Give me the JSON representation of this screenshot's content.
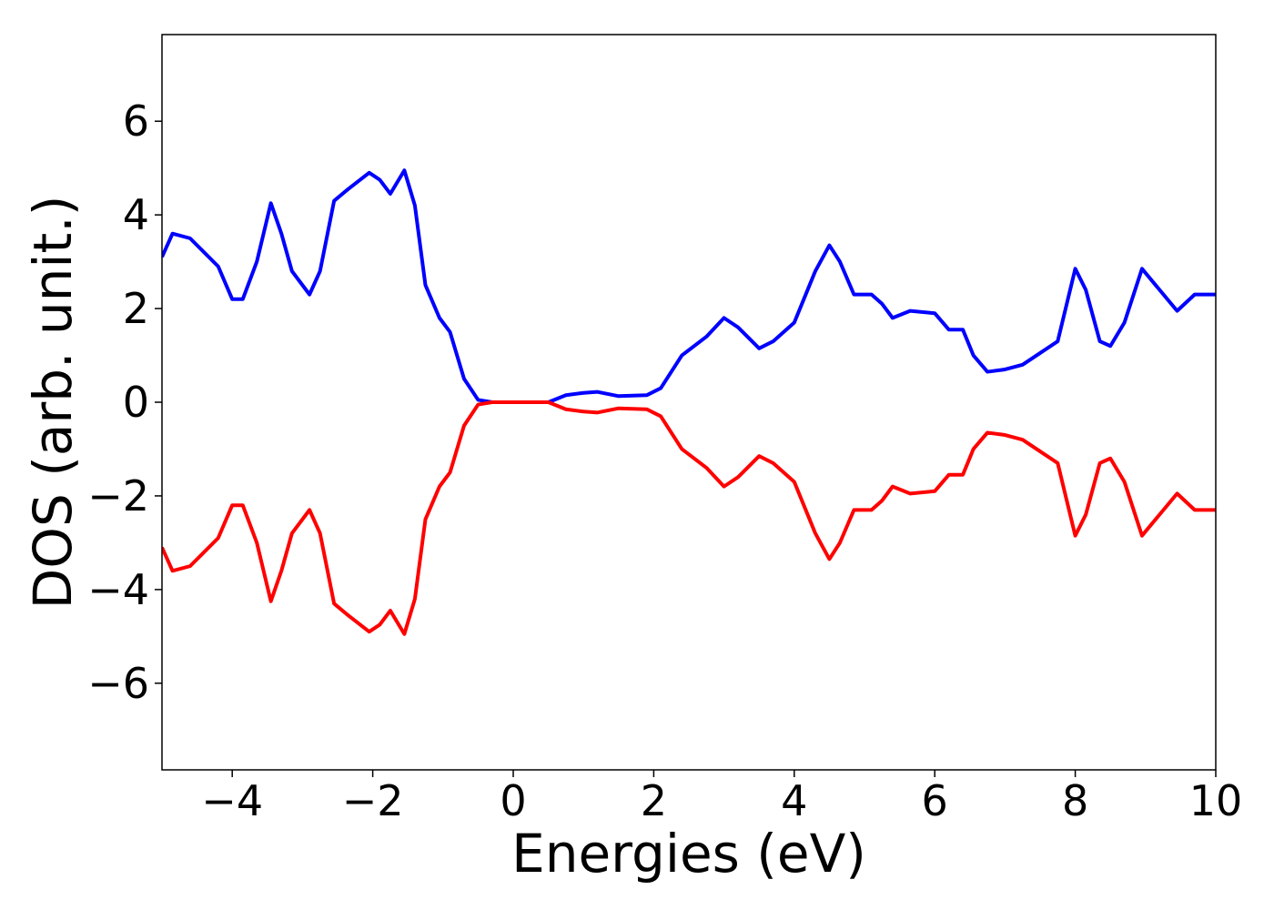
{
  "chart_data": {
    "type": "line",
    "xlabel": "Energies (eV)",
    "ylabel": "DOS (arb. unit.)",
    "x": [
      -5.0,
      -4.85,
      -4.6,
      -4.4,
      -4.2,
      -4.0,
      -3.85,
      -3.65,
      -3.45,
      -3.3,
      -3.15,
      -2.9,
      -2.75,
      -2.55,
      -2.35,
      -2.05,
      -1.9,
      -1.75,
      -1.55,
      -1.4,
      -1.25,
      -1.05,
      -0.9,
      -0.7,
      -0.5,
      -0.3,
      0.5,
      0.75,
      1.0,
      1.2,
      1.5,
      1.9,
      2.1,
      2.4,
      2.75,
      3.0,
      3.2,
      3.5,
      3.7,
      4.0,
      4.3,
      4.5,
      4.65,
      4.85,
      5.1,
      5.25,
      5.4,
      5.65,
      6.0,
      6.2,
      6.4,
      6.55,
      6.75,
      7.0,
      7.25,
      7.5,
      7.75,
      8.0,
      8.15,
      8.35,
      8.5,
      8.7,
      8.95,
      9.2,
      9.45,
      9.7,
      10.0
    ],
    "series": [
      {
        "color": "#0000ff",
        "values": [
          3.1,
          3.6,
          3.5,
          3.2,
          2.9,
          2.2,
          2.2,
          3.0,
          4.25,
          3.6,
          2.8,
          2.3,
          2.8,
          4.3,
          4.55,
          4.9,
          4.75,
          4.45,
          4.95,
          4.2,
          2.5,
          1.8,
          1.5,
          0.5,
          0.05,
          0.0,
          0.0,
          0.15,
          0.2,
          0.22,
          0.13,
          0.15,
          0.3,
          1.0,
          1.4,
          1.8,
          1.6,
          1.15,
          1.3,
          1.7,
          2.8,
          3.35,
          3.0,
          2.3,
          2.3,
          2.1,
          1.8,
          1.95,
          1.9,
          1.55,
          1.55,
          1.0,
          0.65,
          0.7,
          0.8,
          1.05,
          1.3,
          2.85,
          2.4,
          1.3,
          1.2,
          1.7,
          2.85,
          2.4,
          1.95,
          2.3,
          2.3
        ]
      },
      {
        "color": "#ff0000",
        "values": [
          -3.1,
          -3.6,
          -3.5,
          -3.2,
          -2.9,
          -2.2,
          -2.2,
          -3.0,
          -4.25,
          -3.6,
          -2.8,
          -2.3,
          -2.8,
          -4.3,
          -4.55,
          -4.9,
          -4.75,
          -4.45,
          -4.95,
          -4.2,
          -2.5,
          -1.8,
          -1.5,
          -0.5,
          -0.05,
          0.0,
          0.0,
          -0.15,
          -0.2,
          -0.22,
          -0.13,
          -0.15,
          -0.3,
          -1.0,
          -1.4,
          -1.8,
          -1.6,
          -1.15,
          -1.3,
          -1.7,
          -2.8,
          -3.35,
          -3.0,
          -2.3,
          -2.3,
          -2.1,
          -1.8,
          -1.95,
          -1.9,
          -1.55,
          -1.55,
          -1.0,
          -0.65,
          -0.7,
          -0.8,
          -1.05,
          -1.3,
          -2.85,
          -2.4,
          -1.3,
          -1.2,
          -1.7,
          -2.85,
          -2.4,
          -1.95,
          -2.3,
          -2.3
        ]
      }
    ],
    "xlim": [
      -5,
      10
    ],
    "xticks": [
      {
        "value": -4,
        "label": "−4"
      },
      {
        "value": -2,
        "label": "−2"
      },
      0,
      2,
      4,
      6,
      8,
      10
    ],
    "ylim": [
      -7.85,
      7.85
    ],
    "yticks": [
      {
        "value": -6,
        "label": "−6"
      },
      {
        "value": -4,
        "label": "−4"
      },
      {
        "value": -2,
        "label": "−2"
      },
      0,
      2,
      4,
      6
    ]
  }
}
